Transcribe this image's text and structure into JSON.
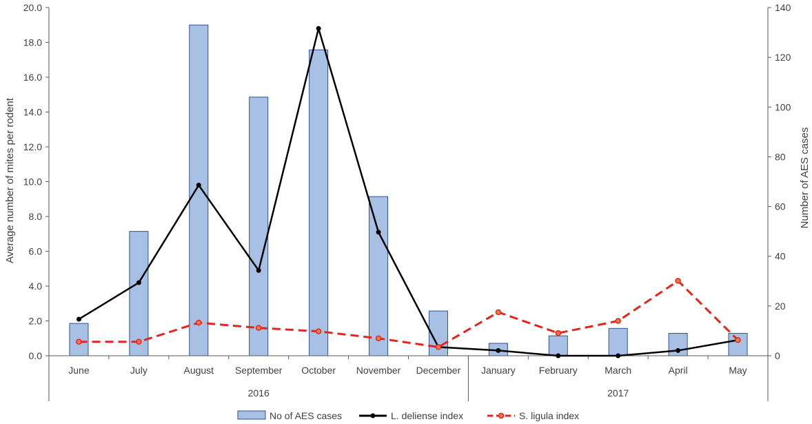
{
  "chart_data": {
    "type": "bar",
    "categories": [
      "June",
      "July",
      "August",
      "September",
      "October",
      "November",
      "December",
      "January",
      "February",
      "March",
      "April",
      "May"
    ],
    "groups": [
      {
        "label": "2016",
        "from": 0,
        "to": 6
      },
      {
        "label": "2017",
        "from": 7,
        "to": 11
      }
    ],
    "series": [
      {
        "name": "No of AES cases",
        "kind": "bar",
        "axis": "right",
        "color": "#a9c0e5",
        "edge": "#2f4f8f",
        "values": [
          13,
          50,
          133,
          104,
          123,
          64,
          18,
          5,
          8,
          11,
          9,
          9
        ]
      },
      {
        "name": "L. deliense index",
        "kind": "line",
        "axis": "left",
        "color": "#000000",
        "dash": "solid",
        "values": [
          2.1,
          4.2,
          9.8,
          4.9,
          18.8,
          7.1,
          0.5,
          0.3,
          0.0,
          0.0,
          0.3,
          0.9
        ]
      },
      {
        "name": "S. ligula index",
        "kind": "line",
        "axis": "left",
        "color": "#e8231e",
        "dash": "dashed",
        "values": [
          0.8,
          0.8,
          1.9,
          1.6,
          1.4,
          1.0,
          0.5,
          2.5,
          1.3,
          2.0,
          4.3,
          0.9
        ]
      }
    ],
    "ylabel": "Average number of mites per rodent",
    "y2label": "Number of AES cases",
    "ylim": [
      0,
      20
    ],
    "y2lim": [
      0,
      140
    ],
    "yticks": [
      "0.0",
      "2.0",
      "4.0",
      "6.0",
      "8.0",
      "10.0",
      "12.0",
      "14.0",
      "16.0",
      "18.0",
      "20.0"
    ],
    "y2ticks": [
      "0",
      "20",
      "40",
      "60",
      "80",
      "100",
      "120",
      "140"
    ],
    "grid": false,
    "legend": "bottom"
  }
}
